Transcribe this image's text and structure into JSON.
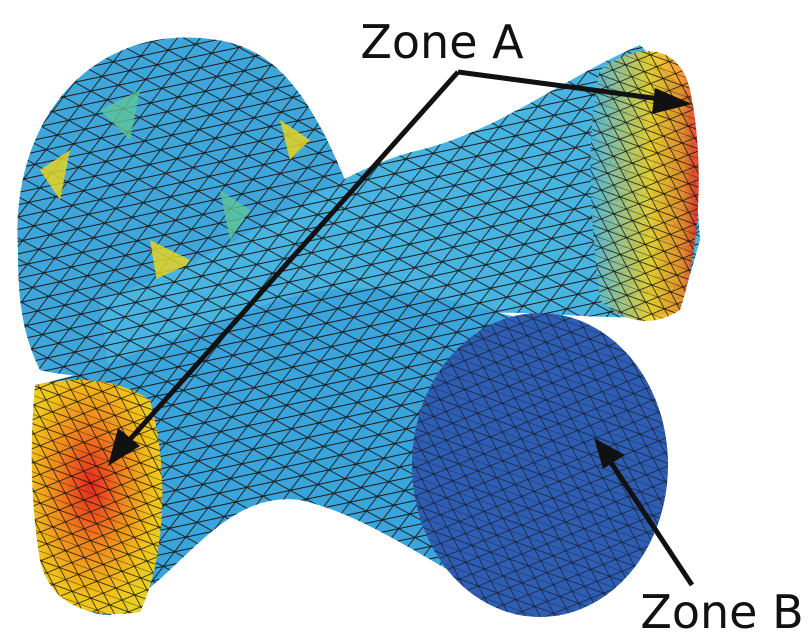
{
  "labels": {
    "zone_a": "Zone A",
    "zone_b": "Zone B"
  }
}
